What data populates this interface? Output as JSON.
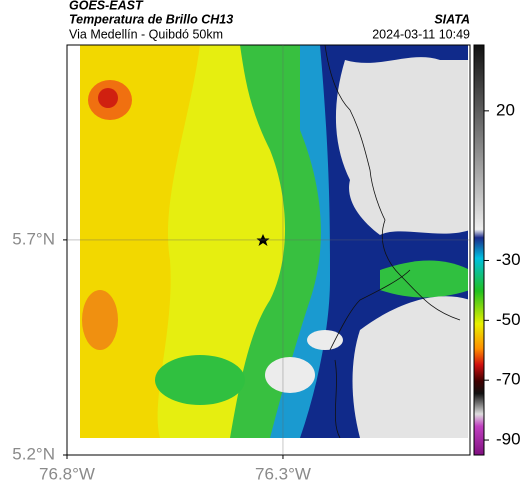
{
  "header": {
    "source": "GOES-EAST",
    "title": "Temperatura de Brillo CH13",
    "agency": "SIATA",
    "subtitle": "Via Medellín - Quibdó 50km",
    "timestamp": "2024-03-11 10:49"
  },
  "chart_data": {
    "type": "map",
    "xlim": [
      -76.8,
      -75.867
    ],
    "ylim": [
      5.2,
      6.153
    ],
    "xticks": [
      {
        "value": -76.8,
        "label": "76.8°W"
      },
      {
        "value": -76.3,
        "label": "76.3°W"
      }
    ],
    "yticks": [
      {
        "value": 5.2,
        "label": "5.2°N"
      },
      {
        "value": 5.7,
        "label": "5.7°N"
      }
    ],
    "grid": true,
    "colorbar": {
      "lim": [
        -95,
        42
      ],
      "ticks": [
        20,
        -30,
        -50,
        -70,
        -90
      ]
    }
  }
}
